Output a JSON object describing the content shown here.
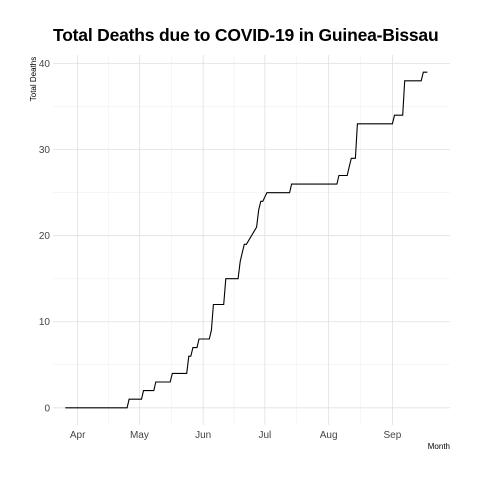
{
  "chart_data": {
    "type": "line",
    "title": "Total Deaths due to COVID-19 in Guinea-Bissau",
    "xlabel": "Month",
    "ylabel": "Total Deaths",
    "x_ticks": [
      "Apr",
      "May",
      "Jun",
      "Jul",
      "Aug",
      "Sep"
    ],
    "y_ticks": [
      0,
      10,
      20,
      30,
      40
    ],
    "ylim": [
      -2,
      41
    ],
    "xlim": [
      "2020-03-20",
      "2020-09-29"
    ],
    "grid": true,
    "legend": "none",
    "series": [
      {
        "line_color": "#000000",
        "x": [
          "2020-03-26",
          "2020-04-25",
          "2020-04-26",
          "2020-05-02",
          "2020-05-03",
          "2020-05-08",
          "2020-05-09",
          "2020-05-16",
          "2020-05-17",
          "2020-05-24",
          "2020-05-25",
          "2020-05-26",
          "2020-05-27",
          "2020-05-29",
          "2020-05-30",
          "2020-06-04",
          "2020-06-05",
          "2020-06-06",
          "2020-06-11",
          "2020-06-12",
          "2020-06-18",
          "2020-06-19",
          "2020-06-20",
          "2020-06-21",
          "2020-06-22",
          "2020-06-27",
          "2020-06-28",
          "2020-06-29",
          "2020-06-30",
          "2020-07-02",
          "2020-07-03",
          "2020-07-13",
          "2020-07-14",
          "2020-08-01",
          "2020-08-02",
          "2020-08-05",
          "2020-08-06",
          "2020-08-10",
          "2020-08-11",
          "2020-08-12",
          "2020-08-13",
          "2020-08-14",
          "2020-08-15",
          "2020-09-01",
          "2020-09-02",
          "2020-09-06",
          "2020-09-07",
          "2020-09-15",
          "2020-09-16",
          "2020-09-18"
        ],
        "y": [
          0,
          0,
          1,
          1,
          2,
          2,
          3,
          3,
          4,
          4,
          6,
          6,
          7,
          7,
          8,
          8,
          9,
          12,
          12,
          15,
          15,
          17,
          18,
          19,
          19,
          21,
          23,
          24,
          24,
          25,
          25,
          25,
          26,
          26,
          26,
          26,
          27,
          27,
          28,
          29,
          29,
          29,
          33,
          33,
          34,
          34,
          38,
          38,
          39,
          39
        ]
      }
    ]
  }
}
